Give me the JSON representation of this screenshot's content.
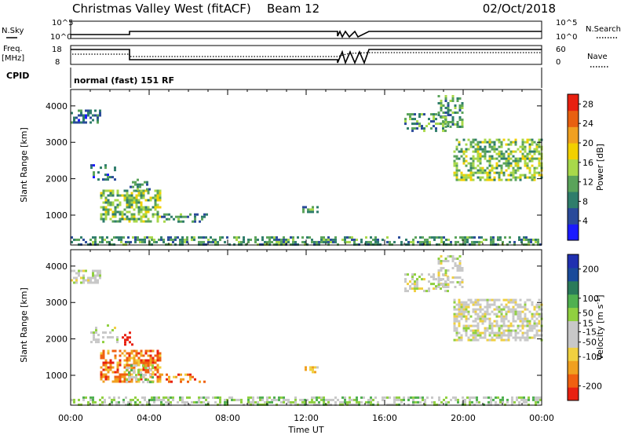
{
  "header": {
    "title": "Christmas Valley West (fitACF)",
    "beam": "Beam 12",
    "date": "02/Oct/2018"
  },
  "params": {
    "nsky_label": "N.Sky",
    "nsearch_label": "N.Search",
    "count_ticks_left": [
      "10^5",
      "10^0"
    ],
    "count_ticks_right": [
      "10^5",
      "10^0"
    ],
    "freq_label_line1": "Freq.",
    "freq_label_line2": "[MHz]",
    "freq_ticks": [
      "18",
      "8"
    ],
    "nave_label": "Nave",
    "nave_ticks": [
      "60",
      "0"
    ],
    "cpid_label": "CPID",
    "cpid_text": "normal (fast) 151 RF"
  },
  "colors": {
    "power": [
      "#1a1aff",
      "#2a4a9a",
      "#2f7d6b",
      "#5aa35a",
      "#a8d84a",
      "#f2d000",
      "#f0a020",
      "#e86010",
      "#e82010"
    ],
    "velocity": [
      "#e82010",
      "#f06010",
      "#f0a020",
      "#f0d040",
      "#c8c8c8",
      "#c8c8c8",
      "#90d040",
      "#50b050",
      "#2a7a5a",
      "#1a4a9a",
      "#2030b0"
    ]
  },
  "chart_data": [
    {
      "type": "heatmap",
      "panel": "power",
      "x_ticks": [
        "00:00",
        "04:00",
        "08:00",
        "12:00",
        "16:00",
        "20:00",
        "00:00"
      ],
      "xlabel": "Time UT",
      "ylabel": "Slant Range [km]",
      "y_ticks": [
        1000,
        2000,
        3000,
        4000
      ],
      "ylim": [
        180,
        4450
      ],
      "colorbar_label": "Power [dB]",
      "colorbar_ticks": [
        4,
        8,
        12,
        16,
        20,
        24,
        28
      ],
      "colorbar_range": [
        0,
        30
      ],
      "regions": [
        {
          "t": [
            0.0,
            1.5
          ],
          "r": [
            3550,
            3900
          ],
          "level": 2,
          "density": 0.55
        },
        {
          "t": [
            1.5,
            4.6
          ],
          "r": [
            800,
            1700
          ],
          "level": 4,
          "density": 0.6
        },
        {
          "t": [
            4.6,
            7.0
          ],
          "r": [
            800,
            1050
          ],
          "level": 3,
          "density": 0.3
        },
        {
          "t": [
            3.0,
            4.0
          ],
          "r": [
            1700,
            2000
          ],
          "level": 3,
          "density": 0.35
        },
        {
          "t": [
            1.0,
            2.4
          ],
          "r": [
            1900,
            2400
          ],
          "level": 2,
          "density": 0.25
        },
        {
          "t": [
            0.0,
            24.0
          ],
          "r": [
            190,
            420
          ],
          "level": 3,
          "density": 0.5
        },
        {
          "t": [
            17.0,
            19.2
          ],
          "r": [
            3300,
            3800
          ],
          "level": 3,
          "density": 0.4
        },
        {
          "t": [
            18.7,
            20.0
          ],
          "r": [
            3400,
            4300
          ],
          "level": 3,
          "density": 0.45
        },
        {
          "t": [
            19.5,
            24.0
          ],
          "r": [
            2000,
            3100
          ],
          "level": 4,
          "density": 0.55
        },
        {
          "t": [
            11.8,
            12.6
          ],
          "r": [
            1100,
            1250
          ],
          "level": 3,
          "density": 0.4
        }
      ]
    },
    {
      "type": "heatmap",
      "panel": "velocity",
      "x_ticks": [
        "00:00",
        "04:00",
        "08:00",
        "12:00",
        "16:00",
        "20:00",
        "00:00"
      ],
      "xlabel": "Time UT",
      "ylabel": "Slant Range [km]",
      "y_ticks": [
        1000,
        2000,
        3000,
        4000
      ],
      "ylim": [
        180,
        4450
      ],
      "colorbar_label": "Velocity [m s^-1]",
      "colorbar_ticks": [
        200,
        100,
        50,
        15,
        -15,
        -50,
        -100,
        -200
      ],
      "colorbar_range": [
        -250,
        250
      ],
      "regions": [
        {
          "t": [
            0.0,
            1.5
          ],
          "r": [
            3550,
            3900
          ],
          "level": 5,
          "density": 0.55
        },
        {
          "t": [
            1.5,
            4.6
          ],
          "r": [
            800,
            1700
          ],
          "level": 2,
          "density": 0.6
        },
        {
          "t": [
            2.8,
            4.2
          ],
          "r": [
            800,
            1300
          ],
          "level": 6,
          "density": 0.5
        },
        {
          "t": [
            2.6,
            3.2
          ],
          "r": [
            1800,
            2200
          ],
          "level": 0,
          "density": 0.35
        },
        {
          "t": [
            4.6,
            7.0
          ],
          "r": [
            800,
            1050
          ],
          "level": 2,
          "density": 0.3
        },
        {
          "t": [
            1.0,
            2.4
          ],
          "r": [
            1900,
            2400
          ],
          "level": 5,
          "density": 0.25
        },
        {
          "t": [
            0.0,
            24.0
          ],
          "r": [
            190,
            420
          ],
          "level": 6,
          "density": 0.5
        },
        {
          "t": [
            17.0,
            19.2
          ],
          "r": [
            3300,
            3800
          ],
          "level": 5,
          "density": 0.4
        },
        {
          "t": [
            18.7,
            20.0
          ],
          "r": [
            3400,
            4300
          ],
          "level": 5,
          "density": 0.45
        },
        {
          "t": [
            19.5,
            24.0
          ],
          "r": [
            2000,
            3100
          ],
          "level": 5,
          "density": 0.6
        },
        {
          "t": [
            11.8,
            12.6
          ],
          "r": [
            1100,
            1250
          ],
          "level": 3,
          "density": 0.4
        }
      ]
    }
  ]
}
